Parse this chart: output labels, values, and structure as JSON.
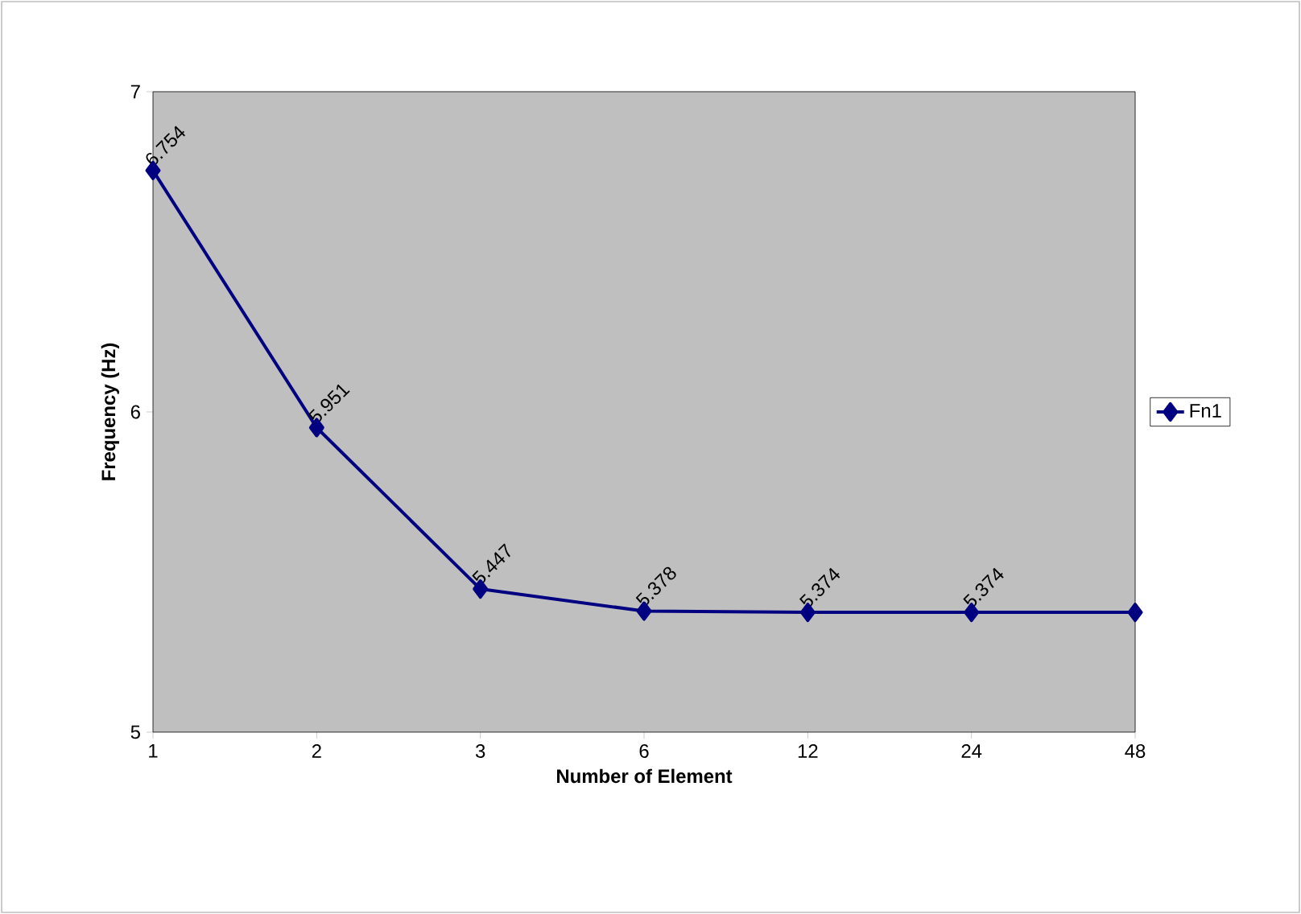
{
  "chart_data": {
    "type": "line",
    "xlabel": "Number of Element",
    "ylabel": "Frequency (Hz)",
    "categories": [
      "1",
      "2",
      "3",
      "6",
      "12",
      "24",
      "48"
    ],
    "series": [
      {
        "name": "Fn1",
        "color": "#000080",
        "values": [
          6.754,
          5.951,
          5.447,
          5.378,
          5.374,
          5.374,
          5.374
        ],
        "value_labels": [
          "6.754",
          "5.951",
          "5.447",
          "5.378",
          "5.374",
          "5.374",
          null
        ]
      }
    ],
    "ylim": [
      5,
      7
    ],
    "yticks": [
      5,
      6,
      7
    ],
    "grid": false,
    "legend": "right",
    "marker": "diamond",
    "line_style": "solid"
  }
}
